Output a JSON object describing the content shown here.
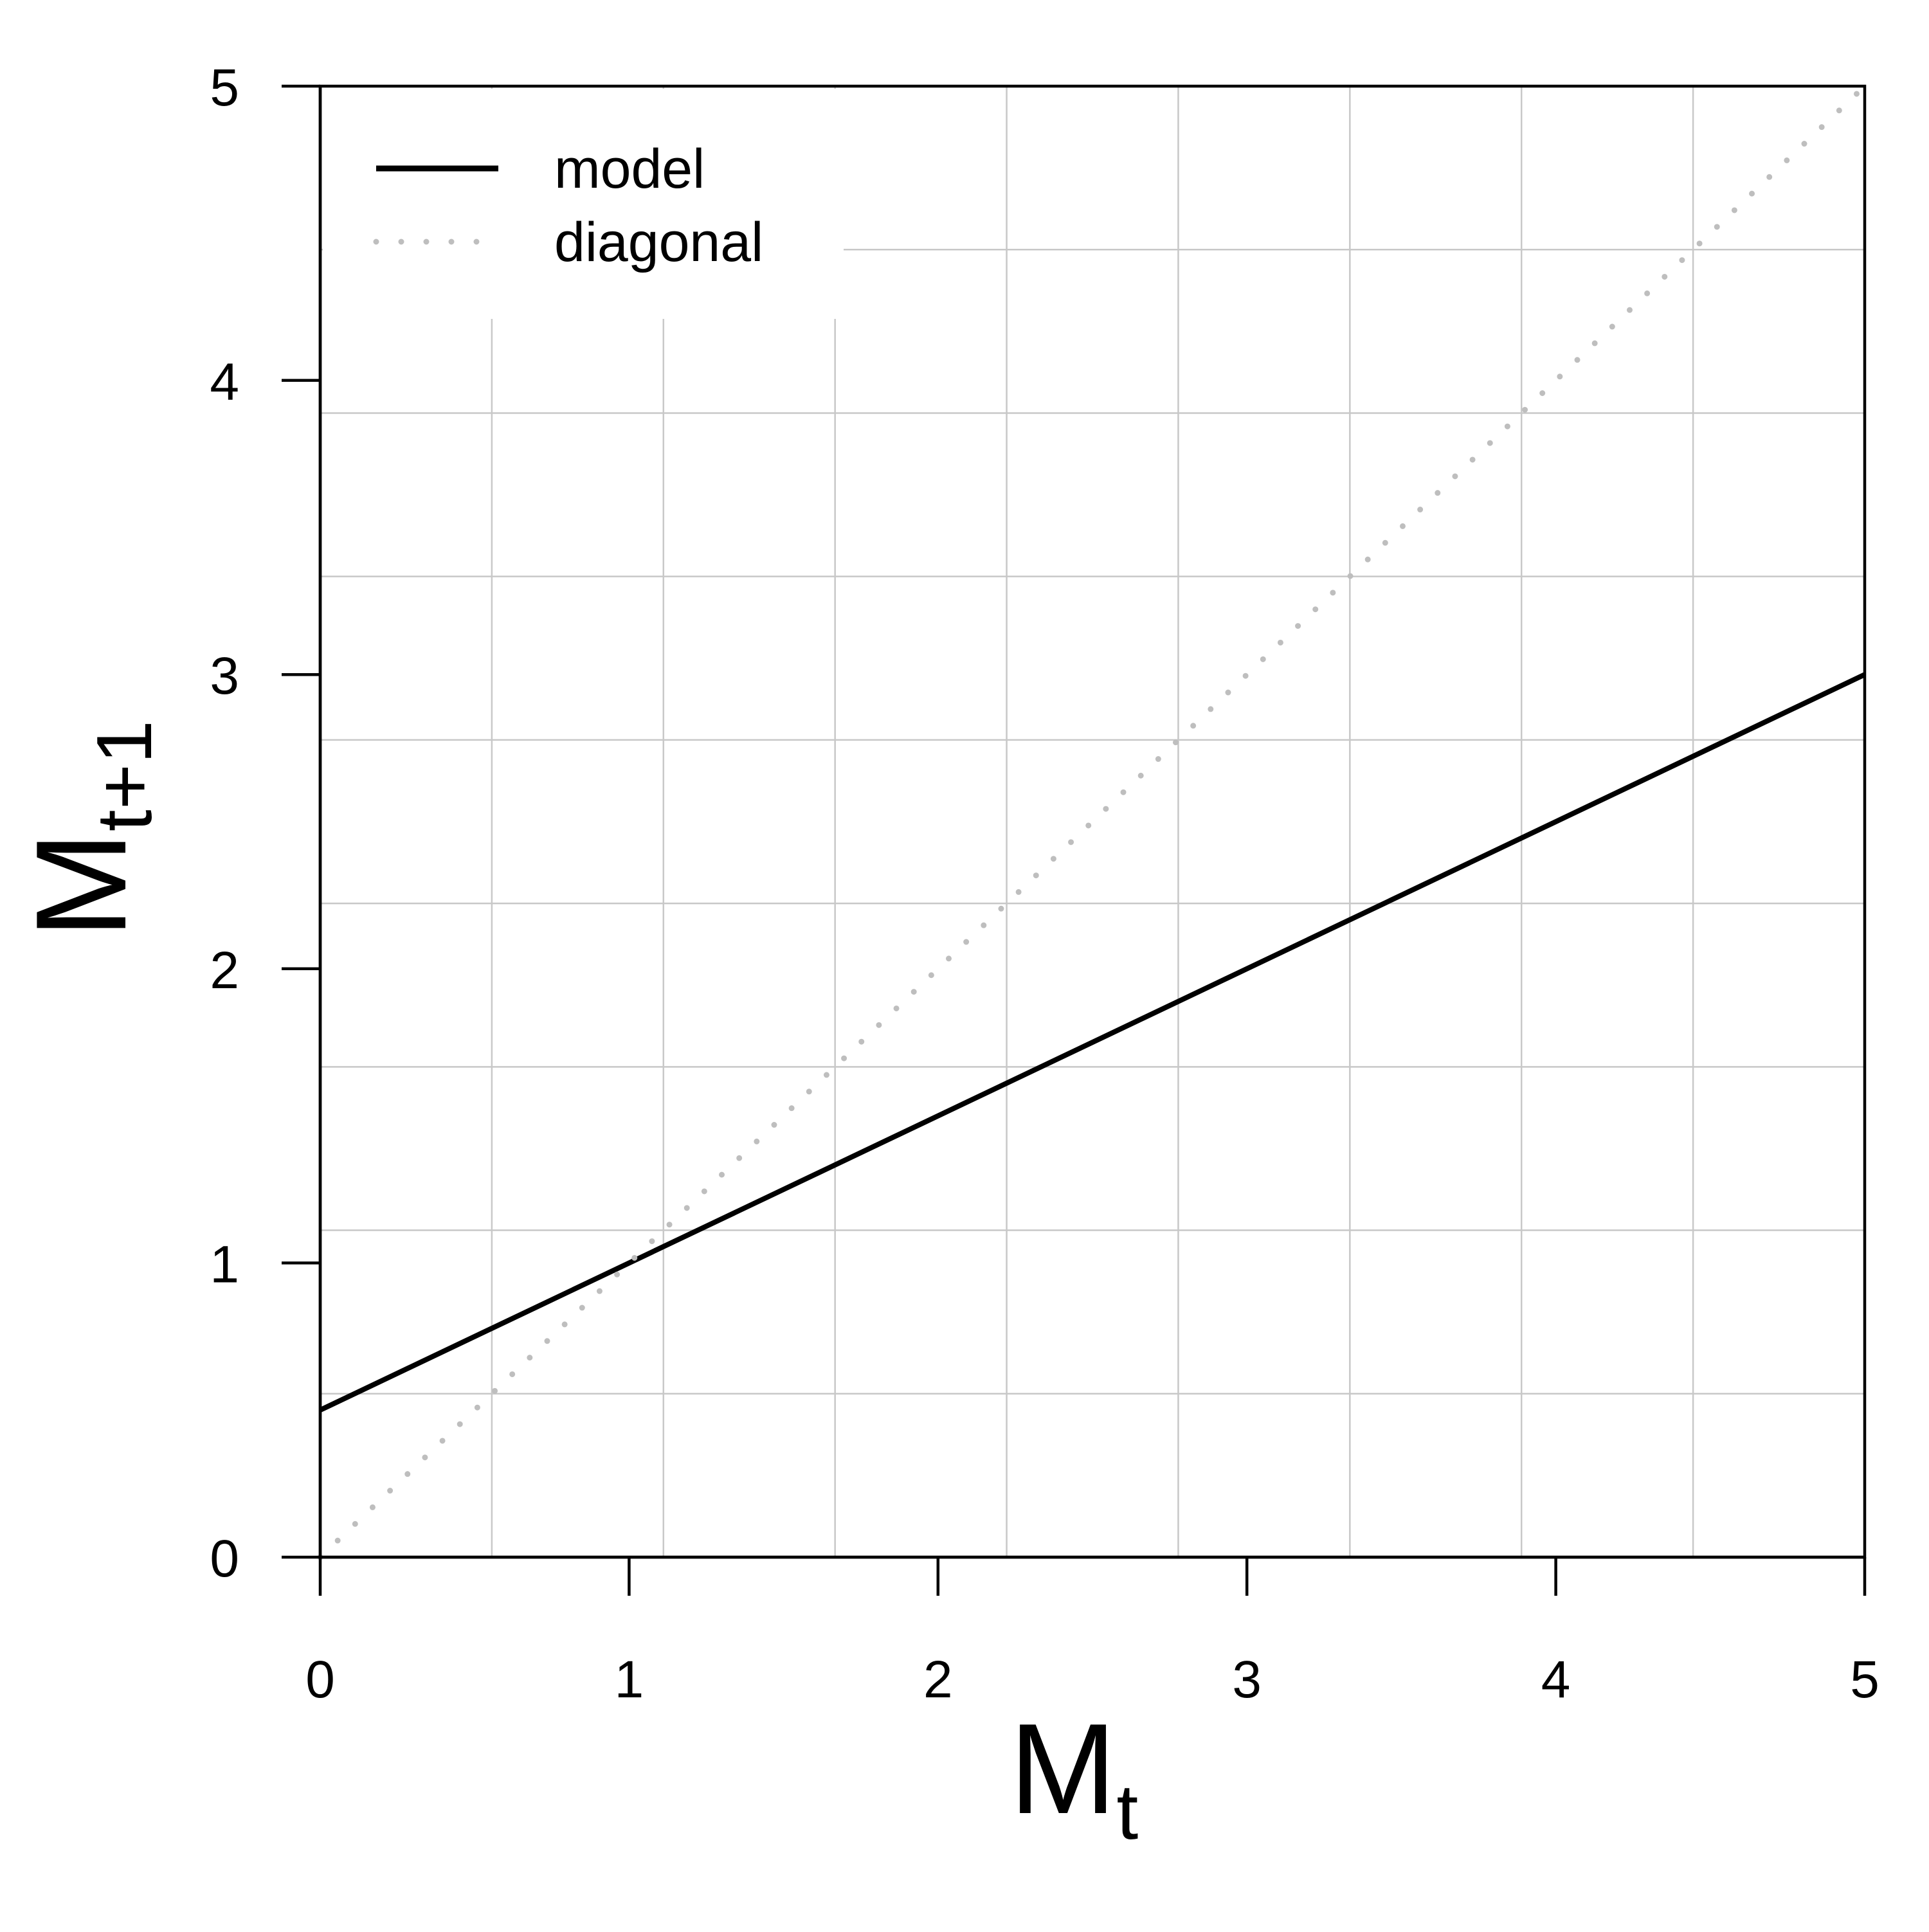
{
  "chart_data": {
    "type": "line",
    "xlim": [
      0,
      5
    ],
    "ylim": [
      0,
      5
    ],
    "x_ticks": [
      0,
      1,
      2,
      3,
      4,
      5
    ],
    "y_ticks": [
      0,
      1,
      2,
      3,
      4,
      5
    ],
    "x_tick_labels": [
      "0",
      "1",
      "2",
      "3",
      "4",
      "5"
    ],
    "y_tick_labels": [
      "0",
      "1",
      "2",
      "3",
      "4",
      "5"
    ],
    "xlabel": {
      "base": "M",
      "subscript": "t"
    },
    "ylabel": {
      "base": "M",
      "subscript": "t+1"
    },
    "grid": true,
    "legend_position": "top-left",
    "series": [
      {
        "name": "model",
        "style": "solid",
        "color": "#000000",
        "x": [
          0,
          5
        ],
        "y": [
          0.5,
          3.0
        ]
      },
      {
        "name": "diagonal",
        "style": "dotted",
        "color": "#bebebe",
        "x": [
          0,
          5
        ],
        "y": [
          0,
          5
        ]
      }
    ]
  }
}
